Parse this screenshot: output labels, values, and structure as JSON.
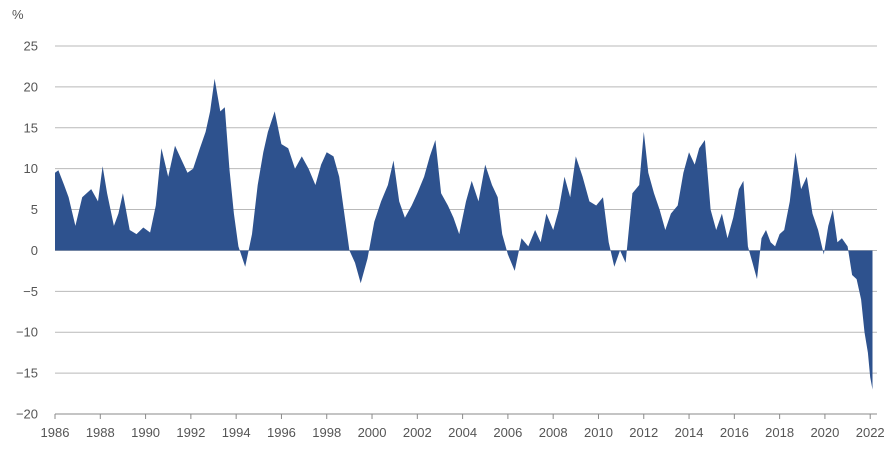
{
  "chart_data": {
    "type": "area",
    "title": "",
    "xlabel": "",
    "ylabel": "%",
    "xlim": [
      1986,
      2022.3
    ],
    "ylim": [
      -20,
      25
    ],
    "yticks": [
      25,
      20,
      15,
      10,
      5,
      0,
      -5,
      -10,
      -15,
      -20
    ],
    "xticks": [
      1986,
      1988,
      1990,
      1992,
      1994,
      1996,
      1998,
      2000,
      2002,
      2004,
      2006,
      2008,
      2010,
      2012,
      2014,
      2016,
      2018,
      2020,
      2022
    ],
    "grid": "horizontal",
    "legend": "none",
    "colors": {
      "fill": "#2e528e",
      "grid": "#b9b9b9",
      "axis": "#8a8a8a",
      "text": "#555555"
    },
    "series": [
      {
        "x": [
          1986.0,
          1986.15,
          1986.4,
          1986.6,
          1986.9,
          1987.2,
          1987.6,
          1987.9,
          1988.1,
          1988.3,
          1988.6,
          1988.8,
          1989.0,
          1989.3,
          1989.6,
          1989.9,
          1990.2,
          1990.45,
          1990.7,
          1991.0,
          1991.3,
          1991.6,
          1991.85,
          1992.1,
          1992.4,
          1992.65,
          1992.85,
          1993.05,
          1993.3,
          1993.5,
          1993.7,
          1993.9,
          1994.1,
          1994.4,
          1994.7,
          1994.95,
          1995.2,
          1995.4,
          1995.7,
          1996.0,
          1996.3,
          1996.6,
          1996.9,
          1997.2,
          1997.5,
          1997.75,
          1998.0,
          1998.3,
          1998.55,
          1998.8,
          1999.0,
          1999.25,
          1999.5,
          1999.8,
          2000.1,
          2000.4,
          2000.7,
          2000.95,
          2001.2,
          2001.45,
          2001.75,
          2002.0,
          2002.3,
          2002.55,
          2002.8,
          2003.05,
          2003.35,
          2003.6,
          2003.85,
          2004.15,
          2004.4,
          2004.7,
          2005.0,
          2005.3,
          2005.55,
          2005.75,
          2006.0,
          2006.3,
          2006.6,
          2006.9,
          2007.2,
          2007.45,
          2007.7,
          2008.0,
          2008.25,
          2008.5,
          2008.75,
          2009.0,
          2009.3,
          2009.6,
          2009.9,
          2010.2,
          2010.45,
          2010.7,
          2010.95,
          2011.2,
          2011.5,
          2011.8,
          2012.0,
          2012.2,
          2012.45,
          2012.7,
          2012.95,
          2013.2,
          2013.5,
          2013.75,
          2014.0,
          2014.25,
          2014.45,
          2014.7,
          2014.95,
          2015.2,
          2015.45,
          2015.7,
          2015.95,
          2016.2,
          2016.4,
          2016.6,
          2016.8,
          2017.0,
          2017.2,
          2017.4,
          2017.6,
          2017.8,
          2018.0,
          2018.2,
          2018.45,
          2018.7,
          2018.95,
          2019.2,
          2019.45,
          2019.7,
          2019.95,
          2020.15,
          2020.35,
          2020.55,
          2020.75,
          2021.0,
          2021.2,
          2021.4,
          2021.6,
          2021.75,
          2021.9,
          2022.0,
          2022.1
        ],
        "values": [
          9.5,
          9.8,
          8.0,
          6.5,
          3.0,
          6.5,
          7.5,
          6.0,
          10.3,
          7.0,
          3.0,
          4.5,
          7.0,
          2.5,
          2.0,
          2.8,
          2.2,
          5.5,
          12.5,
          9.0,
          12.8,
          11.0,
          9.5,
          10.0,
          12.5,
          14.5,
          17.0,
          21.0,
          17.0,
          17.5,
          10.0,
          4.5,
          0.5,
          -2.0,
          2.0,
          8.0,
          12.0,
          14.5,
          17.0,
          13.0,
          12.5,
          10.0,
          11.5,
          10.0,
          8.0,
          10.5,
          12.0,
          11.5,
          9.0,
          4.0,
          0.0,
          -1.5,
          -4.0,
          -1.0,
          3.5,
          6.0,
          8.0,
          11.0,
          6.0,
          4.0,
          5.5,
          7.0,
          9.0,
          11.5,
          13.5,
          7.0,
          5.5,
          4.0,
          2.0,
          6.0,
          8.5,
          6.0,
          10.5,
          8.0,
          6.5,
          2.0,
          -0.5,
          -2.5,
          1.5,
          0.5,
          2.5,
          1.0,
          4.5,
          2.5,
          5.0,
          9.0,
          6.5,
          11.5,
          9.0,
          6.0,
          5.5,
          6.5,
          1.0,
          -2.0,
          0.0,
          -1.5,
          7.0,
          8.0,
          14.5,
          9.5,
          7.0,
          5.0,
          2.5,
          4.5,
          5.5,
          9.5,
          12.0,
          10.5,
          12.5,
          13.5,
          5.0,
          2.5,
          4.5,
          1.5,
          4.0,
          7.5,
          8.5,
          0.5,
          -1.5,
          -3.5,
          1.5,
          2.5,
          1.0,
          0.5,
          2.0,
          2.5,
          6.0,
          12.0,
          7.5,
          9.0,
          4.5,
          2.5,
          -0.5,
          3.0,
          5.0,
          1.0,
          1.5,
          0.5,
          -3.0,
          -3.5,
          -6.0,
          -10.0,
          -12.5,
          -15.5,
          -17.0
        ]
      }
    ]
  }
}
